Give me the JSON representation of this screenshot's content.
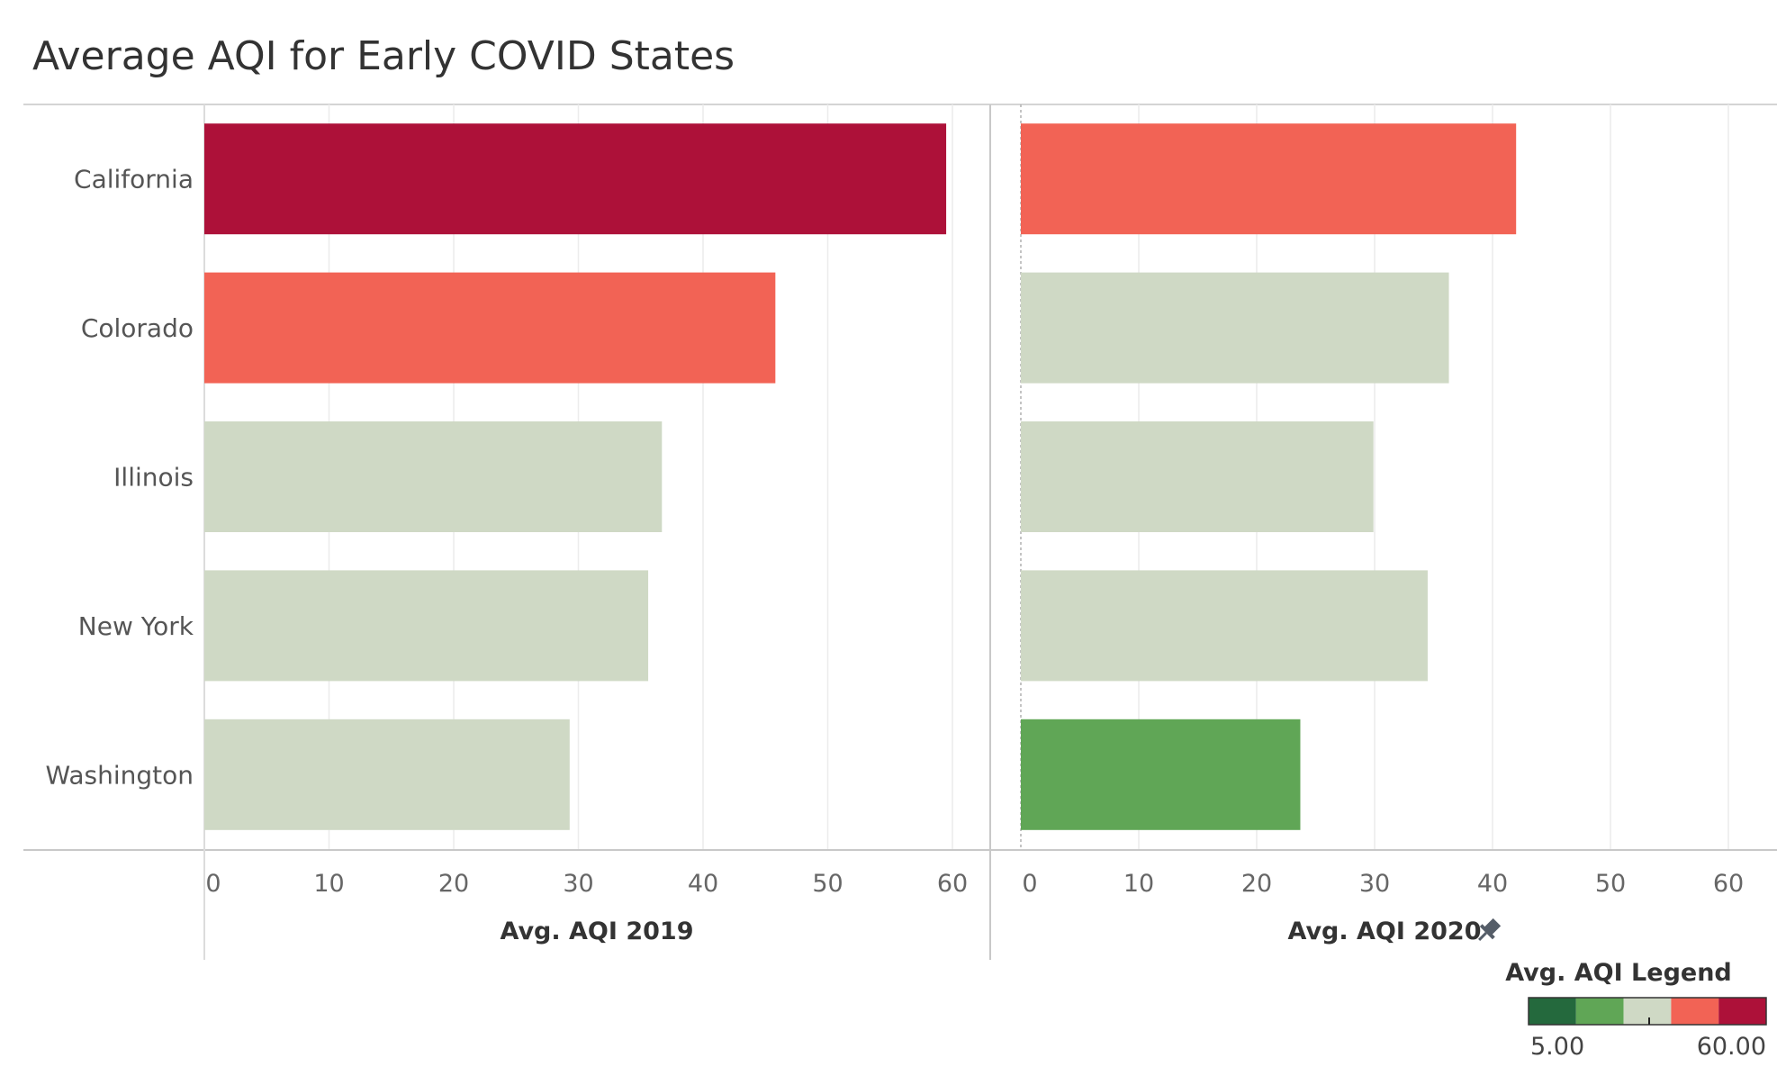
{
  "chart_data": {
    "type": "bar",
    "orientation": "horizontal",
    "title": "Average AQI for Early COVID States",
    "categories": [
      "California",
      "Colorado",
      "Illinois",
      "New York",
      "Washington"
    ],
    "panels": [
      {
        "xlabel": "Avg. AQI 2019",
        "pinned": false,
        "xlim": [
          0,
          60
        ],
        "ticks": [
          0,
          10,
          20,
          30,
          40,
          50,
          60
        ],
        "values": [
          59.5,
          45.8,
          36.7,
          35.6,
          29.3
        ]
      },
      {
        "xlabel": "Avg. AQI 2020",
        "pinned": true,
        "xlim": [
          0,
          60
        ],
        "ticks": [
          0,
          10,
          20,
          30,
          40,
          50,
          60
        ],
        "values": [
          42.0,
          36.3,
          29.9,
          34.5,
          23.7
        ]
      }
    ],
    "grid": true,
    "legend": {
      "title": "Avg. AQI Legend",
      "placement": "bottom-right",
      "min_label": "5.00",
      "max_label": "60.00",
      "min": 5,
      "max": 60,
      "colors": [
        "#24693d",
        "#60a656",
        "#cfd9c5",
        "#f26355",
        "#ad1139"
      ]
    }
  }
}
